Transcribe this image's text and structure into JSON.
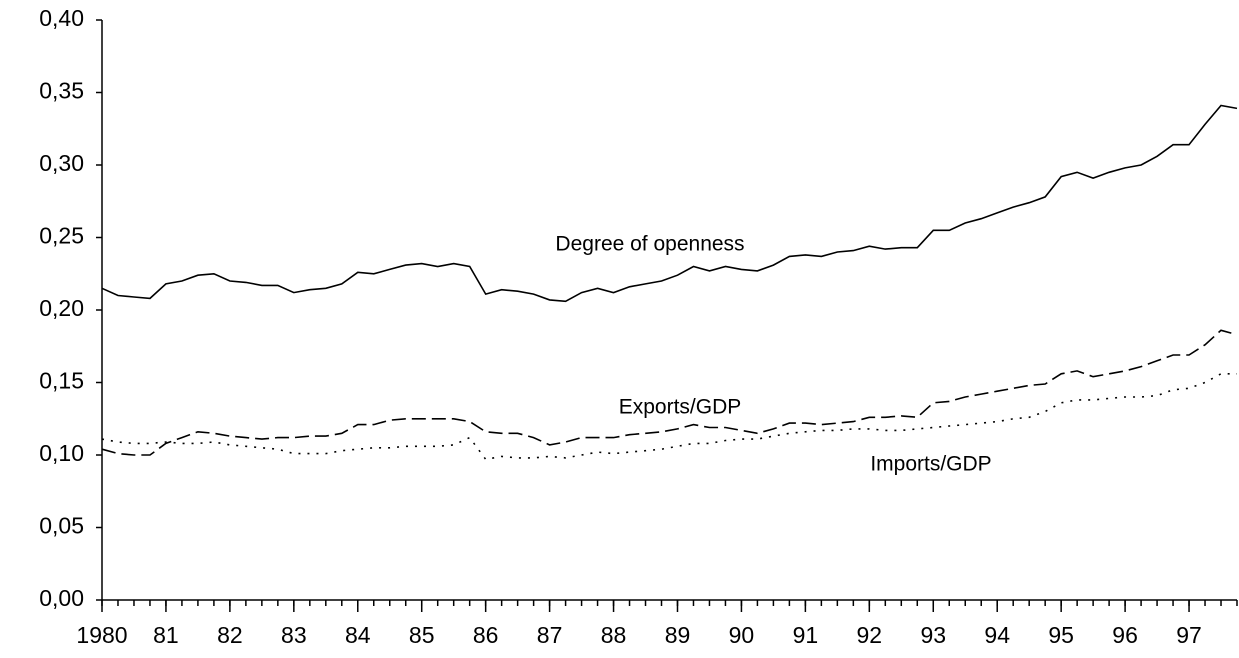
{
  "chart_data": {
    "type": "line",
    "x": [
      1980,
      1980.25,
      1980.5,
      1980.75,
      1981,
      1981.25,
      1981.5,
      1981.75,
      1982,
      1982.25,
      1982.5,
      1982.75,
      1983,
      1983.25,
      1983.5,
      1983.75,
      1984,
      1984.25,
      1984.5,
      1984.75,
      1985,
      1985.25,
      1985.5,
      1985.75,
      1986,
      1986.25,
      1986.5,
      1986.75,
      1987,
      1987.25,
      1987.5,
      1987.75,
      1988,
      1988.25,
      1988.5,
      1988.75,
      1989,
      1989.25,
      1989.5,
      1989.75,
      1990,
      1990.25,
      1990.5,
      1990.75,
      1991,
      1991.25,
      1991.5,
      1991.75,
      1992,
      1992.25,
      1992.5,
      1992.75,
      1993,
      1993.25,
      1993.5,
      1993.75,
      1994,
      1994.25,
      1994.5,
      1994.75,
      1995,
      1995.25,
      1995.5,
      1995.75,
      1996,
      1996.25,
      1996.5,
      1996.75,
      1997,
      1997.25,
      1997.5,
      1997.75
    ],
    "series": [
      {
        "name": "Degree of openness",
        "color": "#000000",
        "dash": "solid",
        "values": [
          0.215,
          0.21,
          0.209,
          0.208,
          0.218,
          0.22,
          0.224,
          0.225,
          0.22,
          0.219,
          0.217,
          0.217,
          0.212,
          0.214,
          0.215,
          0.218,
          0.226,
          0.225,
          0.228,
          0.231,
          0.232,
          0.23,
          0.232,
          0.23,
          0.211,
          0.214,
          0.213,
          0.211,
          0.207,
          0.206,
          0.212,
          0.215,
          0.212,
          0.216,
          0.218,
          0.22,
          0.224,
          0.23,
          0.227,
          0.23,
          0.228,
          0.227,
          0.231,
          0.237,
          0.238,
          0.237,
          0.24,
          0.241,
          0.244,
          0.242,
          0.243,
          0.243,
          0.255,
          0.255,
          0.26,
          0.263,
          0.267,
          0.271,
          0.274,
          0.278,
          0.292,
          0.295,
          0.291,
          0.295,
          0.298,
          0.3,
          0.306,
          0.314,
          0.314,
          0.328,
          0.341,
          0.339
        ]
      },
      {
        "name": "Exports/GDP",
        "color": "#000000",
        "dash": "dashed",
        "values": [
          0.104,
          0.101,
          0.1,
          0.1,
          0.108,
          0.112,
          0.116,
          0.115,
          0.113,
          0.112,
          0.111,
          0.112,
          0.112,
          0.113,
          0.113,
          0.115,
          0.121,
          0.121,
          0.124,
          0.125,
          0.125,
          0.125,
          0.125,
          0.123,
          0.116,
          0.115,
          0.115,
          0.112,
          0.107,
          0.109,
          0.112,
          0.112,
          0.112,
          0.114,
          0.115,
          0.116,
          0.118,
          0.121,
          0.119,
          0.119,
          0.117,
          0.115,
          0.118,
          0.122,
          0.122,
          0.121,
          0.122,
          0.123,
          0.126,
          0.126,
          0.127,
          0.126,
          0.136,
          0.137,
          0.14,
          0.142,
          0.144,
          0.146,
          0.148,
          0.149,
          0.156,
          0.158,
          0.154,
          0.156,
          0.158,
          0.161,
          0.165,
          0.169,
          0.169,
          0.176,
          0.186,
          0.183
        ]
      },
      {
        "name": "Imports/GDP",
        "color": "#000000",
        "dash": "dotted",
        "values": [
          0.111,
          0.109,
          0.108,
          0.108,
          0.109,
          0.108,
          0.108,
          0.109,
          0.107,
          0.106,
          0.105,
          0.104,
          0.101,
          0.101,
          0.101,
          0.103,
          0.104,
          0.105,
          0.105,
          0.106,
          0.106,
          0.106,
          0.107,
          0.112,
          0.097,
          0.099,
          0.098,
          0.098,
          0.099,
          0.098,
          0.1,
          0.102,
          0.101,
          0.102,
          0.103,
          0.104,
          0.106,
          0.108,
          0.108,
          0.11,
          0.111,
          0.111,
          0.113,
          0.115,
          0.116,
          0.117,
          0.117,
          0.118,
          0.118,
          0.117,
          0.117,
          0.118,
          0.119,
          0.12,
          0.121,
          0.122,
          0.123,
          0.125,
          0.126,
          0.13,
          0.136,
          0.138,
          0.138,
          0.139,
          0.14,
          0.14,
          0.141,
          0.145,
          0.146,
          0.15,
          0.156,
          0.156
        ]
      }
    ],
    "xlim": [
      1980,
      1997.75
    ],
    "xticks": [
      1980,
      {
        "value": 1981,
        "label": "81"
      },
      {
        "value": 1982,
        "label": "82"
      },
      {
        "value": 1983,
        "label": "83"
      },
      {
        "value": 1984,
        "label": "84"
      },
      {
        "value": 1985,
        "label": "85"
      },
      {
        "value": 1986,
        "label": "86"
      },
      {
        "value": 1987,
        "label": "87"
      },
      {
        "value": 1988,
        "label": "88"
      },
      {
        "value": 1989,
        "label": "89"
      },
      {
        "value": 1990,
        "label": "90"
      },
      {
        "value": 1991,
        "label": "91"
      },
      {
        "value": 1992,
        "label": "92"
      },
      {
        "value": 1993,
        "label": "93"
      },
      {
        "value": 1994,
        "label": "94"
      },
      {
        "value": 1995,
        "label": "95"
      },
      {
        "value": 1996,
        "label": "96"
      },
      {
        "value": 1997,
        "label": "97"
      }
    ],
    "ylim": [
      0,
      0.4
    ],
    "yticks": [
      {
        "value": 0,
        "label": "0,00"
      },
      {
        "value": 0.05,
        "label": "0,05"
      },
      {
        "value": 0.1,
        "label": "0,10"
      },
      {
        "value": 0.15,
        "label": "0,15"
      },
      {
        "value": 0.2,
        "label": "0,20"
      },
      {
        "value": 0.25,
        "label": "0,25"
      },
      {
        "value": 0.3,
        "label": "0,30"
      },
      {
        "value": 0.35,
        "label": "0,35"
      },
      {
        "value": 0.4,
        "label": "0,40"
      }
    ],
    "grid": false
  }
}
